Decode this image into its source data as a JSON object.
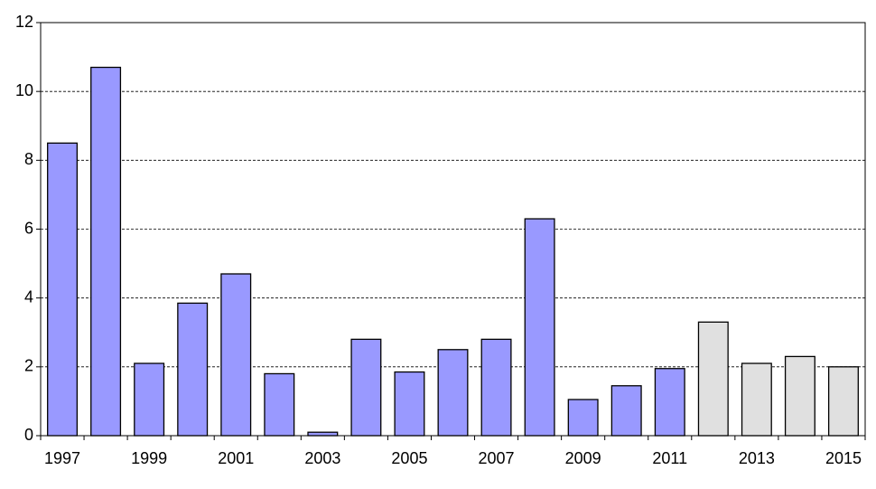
{
  "chart_data": {
    "type": "bar",
    "categories": [
      "1997",
      null,
      "1999",
      null,
      "2001",
      null,
      "2003",
      null,
      "2005",
      null,
      "2007",
      null,
      "2009",
      null,
      "2011",
      null,
      "2013",
      null,
      "2015"
    ],
    "values": [
      8.5,
      10.7,
      2.1,
      3.85,
      4.7,
      1.8,
      0.1,
      2.8,
      1.85,
      2.5,
      2.8,
      6.3,
      1.05,
      1.45,
      1.95,
      3.3,
      2.1,
      2.3,
      2.0
    ],
    "colors": [
      "#9999ff",
      "#9999ff",
      "#9999ff",
      "#9999ff",
      "#9999ff",
      "#9999ff",
      "#9999ff",
      "#9999ff",
      "#9999ff",
      "#9999ff",
      "#9999ff",
      "#9999ff",
      "#9999ff",
      "#9999ff",
      "#9999ff",
      "#e0e0e0",
      "#e0e0e0",
      "#e0e0e0",
      "#e0e0e0"
    ],
    "ylim": [
      0,
      12
    ],
    "yticks": [
      0,
      2,
      4,
      6,
      8,
      10,
      12
    ],
    "grid": true
  }
}
